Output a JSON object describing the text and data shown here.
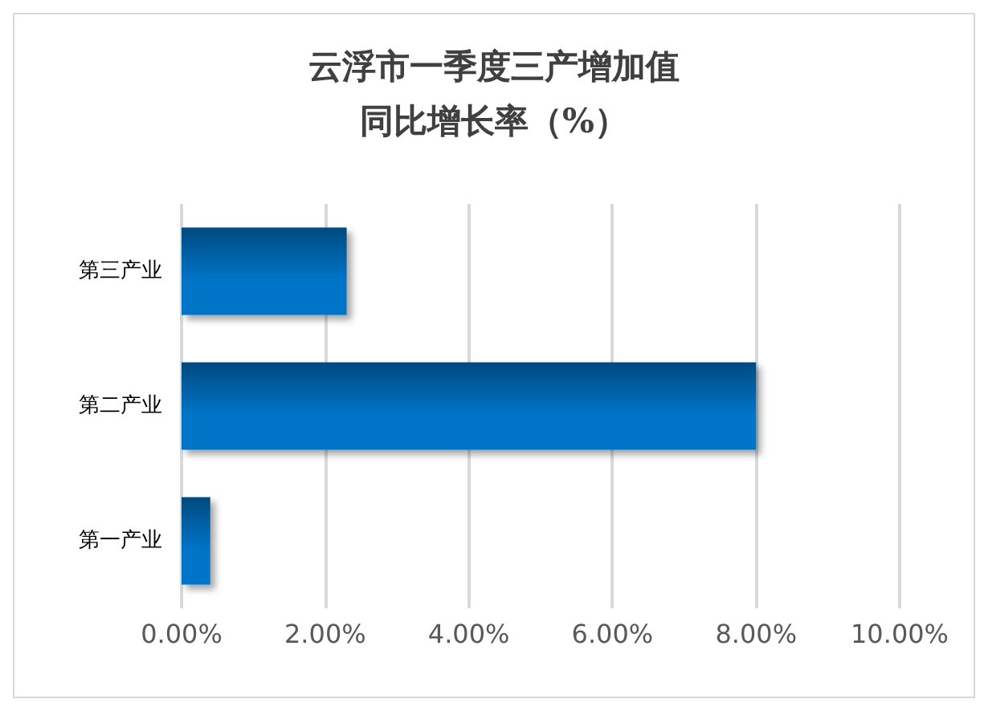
{
  "chart_data": {
    "type": "bar",
    "orientation": "horizontal",
    "title": "云浮市一季度三产增加值",
    "subtitle": "同比增长率（%）",
    "categories": [
      "第三产业",
      "第二产业",
      "第一产业"
    ],
    "values": [
      2.3,
      8.0,
      0.4
    ],
    "color": "#0074c8",
    "xlim": [
      0,
      10
    ],
    "xticks": [
      {
        "value": 0,
        "label": "0.00%"
      },
      {
        "value": 2,
        "label": "2.00%"
      },
      {
        "value": 4,
        "label": "4.00%"
      },
      {
        "value": 6,
        "label": "6.00%"
      },
      {
        "value": 8,
        "label": "8.00%"
      },
      {
        "value": 10,
        "label": "10.00%"
      }
    ],
    "grid": "x"
  }
}
